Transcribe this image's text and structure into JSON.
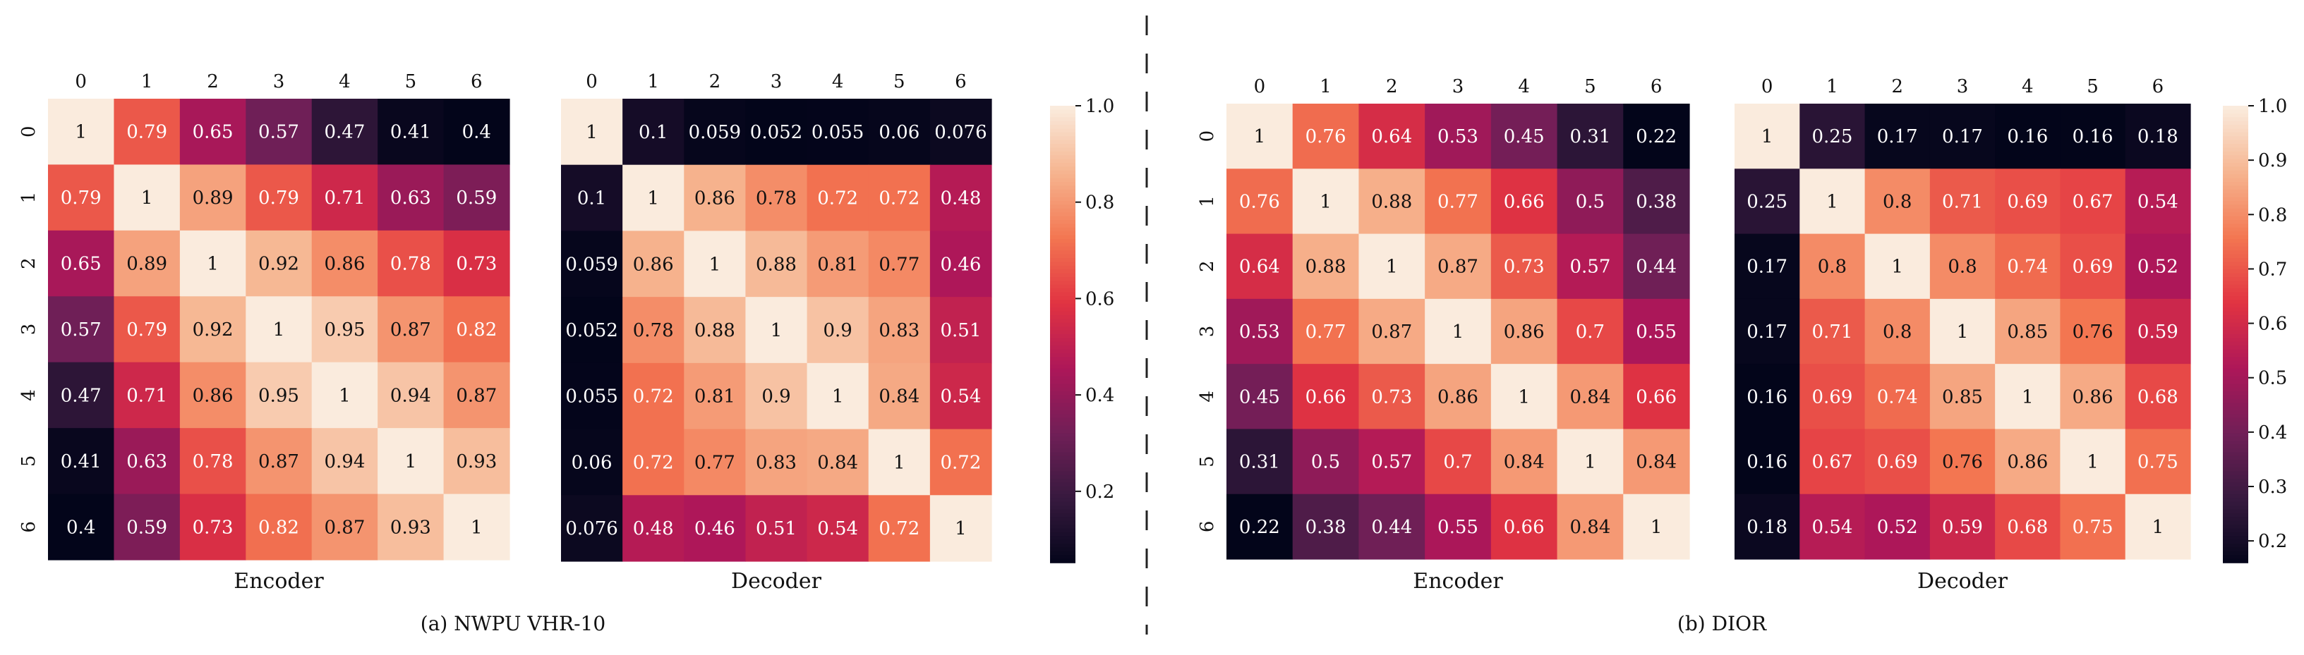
{
  "figure_captions": {
    "left": "(a) NWPU VHR-10",
    "right": "(b) DIOR"
  },
  "colormap": {
    "name": "rocket",
    "stops": [
      "#03051a",
      "#36193e",
      "#701f57",
      "#ad1759",
      "#e13342",
      "#f37651",
      "#f6b48f",
      "#faebdd"
    ]
  },
  "chart_data": [
    {
      "type": "heatmap",
      "panel": "a",
      "title": "Encoder",
      "xlabel": "Encoder",
      "x_ticks": [
        "0",
        "1",
        "2",
        "3",
        "4",
        "5",
        "6"
      ],
      "y_ticks": [
        "0",
        "1",
        "2",
        "3",
        "4",
        "5",
        "6"
      ],
      "colorbar": false,
      "vmin": 0.4,
      "vmax": 1.0,
      "values": [
        [
          1,
          0.79,
          0.65,
          0.57,
          0.47,
          0.41,
          0.4
        ],
        [
          0.79,
          1,
          0.89,
          0.79,
          0.71,
          0.63,
          0.59
        ],
        [
          0.65,
          0.89,
          1,
          0.92,
          0.86,
          0.78,
          0.73
        ],
        [
          0.57,
          0.79,
          0.92,
          1,
          0.95,
          0.87,
          0.82
        ],
        [
          0.47,
          0.71,
          0.86,
          0.95,
          1,
          0.94,
          0.87
        ],
        [
          0.41,
          0.63,
          0.78,
          0.87,
          0.94,
          1,
          0.93
        ],
        [
          0.4,
          0.59,
          0.73,
          0.82,
          0.87,
          0.93,
          1
        ]
      ]
    },
    {
      "type": "heatmap",
      "panel": "a",
      "title": "Decoder",
      "xlabel": "Decoder",
      "x_ticks": [
        "0",
        "1",
        "2",
        "3",
        "4",
        "5",
        "6"
      ],
      "y_ticks": [],
      "colorbar": true,
      "colorbar_ticks": [
        "0.2",
        "0.4",
        "0.6",
        "0.8",
        "1.0"
      ],
      "vmin": 0.052,
      "vmax": 1.0,
      "values": [
        [
          1,
          0.1,
          0.059,
          0.052,
          0.055,
          0.06,
          0.076
        ],
        [
          0.1,
          1,
          0.86,
          0.78,
          0.72,
          0.72,
          0.48
        ],
        [
          0.059,
          0.86,
          1,
          0.88,
          0.81,
          0.77,
          0.46
        ],
        [
          0.052,
          0.78,
          0.88,
          1,
          0.9,
          0.83,
          0.51
        ],
        [
          0.055,
          0.72,
          0.81,
          0.9,
          1,
          0.84,
          0.54
        ],
        [
          0.06,
          0.72,
          0.77,
          0.83,
          0.84,
          1,
          0.72
        ],
        [
          0.076,
          0.48,
          0.46,
          0.51,
          0.54,
          0.72,
          1
        ]
      ]
    },
    {
      "type": "heatmap",
      "panel": "b",
      "title": "Encoder",
      "xlabel": "Encoder",
      "x_ticks": [
        "0",
        "1",
        "2",
        "3",
        "4",
        "5",
        "6"
      ],
      "y_ticks": [
        "0",
        "1",
        "2",
        "3",
        "4",
        "5",
        "6"
      ],
      "colorbar": false,
      "vmin": 0.22,
      "vmax": 1.0,
      "values": [
        [
          1,
          0.76,
          0.64,
          0.53,
          0.45,
          0.31,
          0.22
        ],
        [
          0.76,
          1,
          0.88,
          0.77,
          0.66,
          0.5,
          0.38
        ],
        [
          0.64,
          0.88,
          1,
          0.87,
          0.73,
          0.57,
          0.44
        ],
        [
          0.53,
          0.77,
          0.87,
          1,
          0.86,
          0.7,
          0.55
        ],
        [
          0.45,
          0.66,
          0.73,
          0.86,
          1,
          0.84,
          0.66
        ],
        [
          0.31,
          0.5,
          0.57,
          0.7,
          0.84,
          1,
          0.84
        ],
        [
          0.22,
          0.38,
          0.44,
          0.55,
          0.66,
          0.84,
          1
        ]
      ]
    },
    {
      "type": "heatmap",
      "panel": "b",
      "title": "Decoder",
      "xlabel": "Decoder",
      "x_ticks": [
        "0",
        "1",
        "2",
        "3",
        "4",
        "5",
        "6"
      ],
      "y_ticks": [],
      "colorbar": true,
      "colorbar_ticks": [
        "0.2",
        "0.3",
        "0.4",
        "0.5",
        "0.6",
        "0.7",
        "0.8",
        "0.9",
        "1.0"
      ],
      "vmin": 0.16,
      "vmax": 1.0,
      "values": [
        [
          1,
          0.25,
          0.17,
          0.17,
          0.16,
          0.16,
          0.18
        ],
        [
          0.25,
          1,
          0.8,
          0.71,
          0.69,
          0.67,
          0.54
        ],
        [
          0.17,
          0.8,
          1,
          0.8,
          0.74,
          0.69,
          0.52
        ],
        [
          0.17,
          0.71,
          0.8,
          1,
          0.85,
          0.76,
          0.59
        ],
        [
          0.16,
          0.69,
          0.74,
          0.85,
          1,
          0.86,
          0.68
        ],
        [
          0.16,
          0.67,
          0.69,
          0.76,
          0.86,
          1,
          0.75
        ],
        [
          0.18,
          0.54,
          0.52,
          0.59,
          0.68,
          0.75,
          1
        ]
      ]
    }
  ]
}
